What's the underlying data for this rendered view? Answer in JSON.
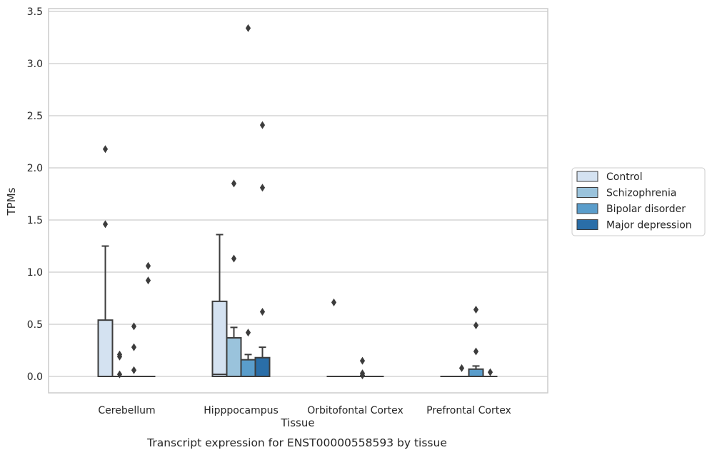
{
  "chart_data": {
    "type": "box",
    "xlabel": "Tissue",
    "ylabel": "TPMs",
    "caption": "Transcript expression for ENST00000558593 by tissue",
    "ylim": [
      -0.16,
      3.53
    ],
    "yticks": [
      "0.0",
      "0.5",
      "1.0",
      "1.5",
      "2.0",
      "2.5",
      "3.0",
      "3.5"
    ],
    "grid": "horizontal",
    "legend_position": "right",
    "categories": [
      "Cerebellum",
      "Hipppocampus",
      "Orbitofontal Cortex",
      "Prefrontal Cortex"
    ],
    "series": [
      {
        "name": "Control",
        "color": "#d4e2f1",
        "boxes": [
          {
            "q1": 0.0,
            "median": 0.0,
            "q3": 0.54,
            "whisker_low": 0.0,
            "whisker_high": 1.25,
            "outliers": [
              1.46,
              2.18
            ]
          },
          {
            "q1": 0.0,
            "median": 0.02,
            "q3": 0.72,
            "whisker_low": 0.0,
            "whisker_high": 1.36,
            "outliers": []
          },
          {
            "q1": 0.0,
            "median": 0.0,
            "q3": 0.0,
            "whisker_low": 0.0,
            "whisker_high": 0.0,
            "outliers": [
              0.71
            ]
          },
          {
            "q1": 0.0,
            "median": 0.0,
            "q3": 0.0,
            "whisker_low": 0.0,
            "whisker_high": 0.0,
            "outliers": []
          }
        ]
      },
      {
        "name": "Schizophrenia",
        "color": "#9ac3dc",
        "boxes": [
          {
            "q1": 0.0,
            "median": 0.0,
            "q3": 0.0,
            "whisker_low": 0.0,
            "whisker_high": 0.0,
            "outliers": [
              0.02,
              0.19,
              0.21
            ]
          },
          {
            "q1": 0.0,
            "median": 0.0,
            "q3": 0.37,
            "whisker_low": 0.0,
            "whisker_high": 0.47,
            "outliers": [
              1.13,
              1.85
            ]
          },
          {
            "q1": 0.0,
            "median": 0.0,
            "q3": 0.0,
            "whisker_low": 0.0,
            "whisker_high": 0.0,
            "outliers": []
          },
          {
            "q1": 0.0,
            "median": 0.0,
            "q3": 0.0,
            "whisker_low": 0.0,
            "whisker_high": 0.0,
            "outliers": [
              0.08
            ]
          }
        ]
      },
      {
        "name": "Bipolar disorder",
        "color": "#5a9dcb",
        "boxes": [
          {
            "q1": 0.0,
            "median": 0.0,
            "q3": 0.0,
            "whisker_low": 0.0,
            "whisker_high": 0.0,
            "outliers": [
              0.06,
              0.28,
              0.48
            ]
          },
          {
            "q1": 0.0,
            "median": 0.0,
            "q3": 0.16,
            "whisker_low": 0.0,
            "whisker_high": 0.21,
            "outliers": [
              0.42,
              3.34
            ]
          },
          {
            "q1": 0.0,
            "median": 0.0,
            "q3": 0.0,
            "whisker_low": 0.0,
            "whisker_high": 0.0,
            "outliers": [
              0.01,
              0.03,
              0.15
            ]
          },
          {
            "q1": 0.0,
            "median": 0.0,
            "q3": 0.07,
            "whisker_low": 0.0,
            "whisker_high": 0.1,
            "outliers": [
              0.24,
              0.49,
              0.64
            ]
          }
        ]
      },
      {
        "name": "Major depression",
        "color": "#2a6ea8",
        "boxes": [
          {
            "q1": 0.0,
            "median": 0.0,
            "q3": 0.0,
            "whisker_low": 0.0,
            "whisker_high": 0.0,
            "outliers": [
              0.92,
              1.06
            ]
          },
          {
            "q1": 0.0,
            "median": 0.0,
            "q3": 0.18,
            "whisker_low": 0.0,
            "whisker_high": 0.28,
            "outliers": [
              0.62,
              1.81,
              2.41
            ]
          },
          {
            "q1": 0.0,
            "median": 0.0,
            "q3": 0.0,
            "whisker_low": 0.0,
            "whisker_high": 0.0,
            "outliers": []
          },
          {
            "q1": 0.0,
            "median": 0.0,
            "q3": 0.0,
            "whisker_low": 0.0,
            "whisker_high": 0.0,
            "outliers": [
              0.04
            ]
          }
        ]
      }
    ]
  }
}
